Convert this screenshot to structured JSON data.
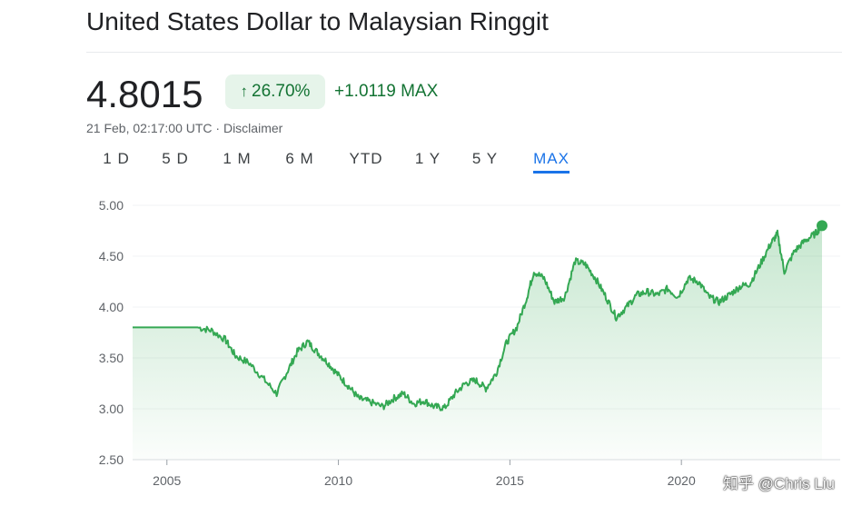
{
  "title": "United States Dollar to Malaysian Ringgit",
  "price": "4.8015",
  "change_percent": "26.70%",
  "change_abs": "+1.0119",
  "range_label": "MAX",
  "timestamp": "21 Feb, 02:17:00 UTC · Disclaimer",
  "watermark": "知乎 @Chris Liu",
  "ranges": [
    "1 D",
    "5 D",
    "1 M",
    "6 M",
    "YTD",
    "1 Y",
    "5 Y",
    "MAX"
  ],
  "active_range": "MAX",
  "colors": {
    "up": "#137333",
    "line": "#34a853",
    "accent": "#1a73e8"
  },
  "chart_data": {
    "type": "area",
    "ylim": [
      2.5,
      5.0
    ],
    "yticks": [
      "5.00",
      "4.50",
      "4.00",
      "3.50",
      "3.00",
      "2.50"
    ],
    "ytick_values": [
      5.0,
      4.5,
      4.0,
      3.5,
      3.0,
      2.5
    ],
    "xlim": [
      2004.0,
      2024.1
    ],
    "xticks": [
      "2005",
      "2010",
      "2015",
      "2020"
    ],
    "xtick_values": [
      2005,
      2010,
      2015,
      2020
    ],
    "grid": true,
    "series": [
      {
        "x": [
          2004.0,
          2004.5,
          2005.0,
          2005.5,
          2005.9,
          2006.3,
          2006.7,
          2007.0,
          2007.4,
          2007.8,
          2008.2,
          2008.5,
          2008.8,
          2009.1,
          2009.4,
          2009.7,
          2010.0,
          2010.3,
          2010.6,
          2010.9,
          2011.3,
          2011.6,
          2011.9,
          2012.2,
          2012.5,
          2012.8,
          2013.1,
          2013.4,
          2013.7,
          2014.0,
          2014.3,
          2014.6,
          2014.9,
          2015.2,
          2015.5,
          2015.7,
          2016.0,
          2016.3,
          2016.6,
          2016.9,
          2017.2,
          2017.5,
          2017.8,
          2018.1,
          2018.4,
          2018.7,
          2019.0,
          2019.3,
          2019.6,
          2019.9,
          2020.2,
          2020.5,
          2020.8,
          2021.1,
          2021.4,
          2021.7,
          2022.0,
          2022.3,
          2022.6,
          2022.8,
          2023.0,
          2023.3,
          2023.6,
          2023.9,
          2024.1
        ],
        "y": [
          3.8,
          3.8,
          3.8,
          3.8,
          3.8,
          3.77,
          3.68,
          3.52,
          3.45,
          3.3,
          3.15,
          3.36,
          3.56,
          3.66,
          3.55,
          3.45,
          3.33,
          3.22,
          3.1,
          3.07,
          3.02,
          3.1,
          3.15,
          3.05,
          3.08,
          3.02,
          3.01,
          3.15,
          3.25,
          3.28,
          3.2,
          3.35,
          3.65,
          3.8,
          4.1,
          4.35,
          4.28,
          4.05,
          4.1,
          4.45,
          4.42,
          4.28,
          4.1,
          3.9,
          4.0,
          4.12,
          4.15,
          4.12,
          4.18,
          4.1,
          4.28,
          4.25,
          4.1,
          4.05,
          4.12,
          4.2,
          4.23,
          4.42,
          4.62,
          4.72,
          4.35,
          4.55,
          4.65,
          4.72,
          4.8
        ]
      }
    ]
  }
}
